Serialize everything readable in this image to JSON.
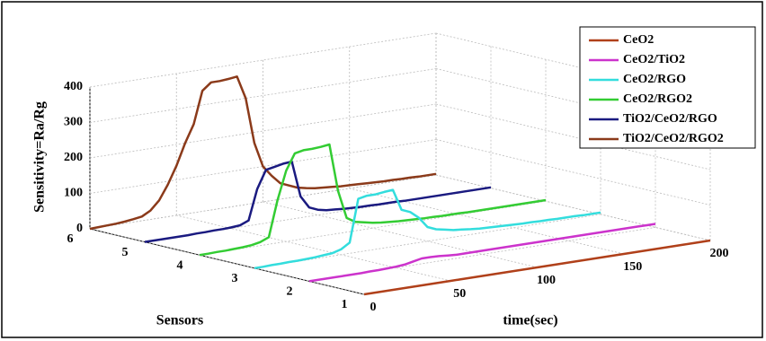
{
  "chart_data": {
    "type": "waterfall3d",
    "xlabel": "time(sec)",
    "ylabel": "Sensors",
    "zlabel": "Sensitivity=Ra/Rg",
    "xlim": [
      0,
      200
    ],
    "xticks": [
      0,
      50,
      100,
      150,
      200
    ],
    "ylim": [
      1,
      6
    ],
    "yticks": [
      1,
      2,
      3,
      4,
      5,
      6
    ],
    "zlim": [
      0,
      400
    ],
    "zticks": [
      0,
      100,
      200,
      300,
      400
    ],
    "grid": true,
    "legend": "upper right",
    "x": [
      0,
      5,
      10,
      15,
      20,
      25,
      30,
      35,
      40,
      45,
      50,
      55,
      60,
      65,
      70,
      75,
      80,
      85,
      90,
      95,
      100,
      105,
      110,
      115,
      120,
      125,
      130,
      135,
      140,
      145,
      150,
      155,
      160,
      165,
      170,
      175,
      180,
      185,
      190,
      195,
      200
    ],
    "series": [
      {
        "name": "CeO2",
        "color": "#b0401a",
        "sensor": 1,
        "values": [
          0,
          0,
          0,
          0,
          0,
          0,
          0,
          0,
          0,
          0,
          0,
          0,
          0,
          0,
          0,
          0,
          0,
          0,
          0,
          0,
          0,
          0,
          0,
          0,
          0,
          0,
          0,
          0,
          0,
          0,
          0,
          0,
          0,
          0,
          0,
          0,
          0,
          0,
          0,
          0,
          0
        ]
      },
      {
        "name": "CeO2/TiO2",
        "color": "#cc33cc",
        "sensor": 2,
        "values": [
          0,
          0,
          0,
          0,
          0,
          0,
          0,
          1,
          1,
          2,
          3,
          5,
          10,
          15,
          15,
          14,
          12,
          10,
          10,
          10,
          10,
          10,
          10,
          10,
          10,
          10,
          10,
          10,
          10,
          10,
          10,
          10,
          10,
          10,
          10,
          10,
          10,
          10,
          10,
          10,
          10
        ]
      },
      {
        "name": "CeO2/RGO",
        "color": "#33dddd",
        "sensor": 3,
        "values": [
          0,
          0,
          1,
          1,
          2,
          2,
          3,
          4,
          6,
          8,
          15,
          30,
          150,
          155,
          155,
          158,
          160,
          100,
          90,
          70,
          40,
          30,
          25,
          20,
          18,
          15,
          13,
          12,
          11,
          10,
          9,
          8,
          8,
          7,
          7,
          6,
          6,
          6,
          5,
          5,
          5
        ]
      },
      {
        "name": "CeO2/RGO2",
        "color": "#33cc33",
        "sensor": 4,
        "values": [
          0,
          0,
          1,
          1,
          2,
          3,
          5,
          10,
          20,
          120,
          200,
          245,
          250,
          250,
          252,
          255,
          120,
          40,
          25,
          20,
          15,
          12,
          10,
          8,
          7,
          6,
          5,
          5,
          4,
          4,
          4,
          3,
          3,
          3,
          3,
          3,
          3,
          3,
          3,
          3,
          3
        ]
      },
      {
        "name": "TiO2/CeO2/RGO",
        "color": "#1a1a80",
        "sensor": 5,
        "values": [
          0,
          0,
          0,
          0,
          0,
          0,
          1,
          1,
          2,
          2,
          3,
          5,
          15,
          100,
          150,
          155,
          160,
          162,
          60,
          25,
          15,
          10,
          8,
          6,
          5,
          4,
          4,
          3,
          3,
          3,
          2,
          2,
          2,
          2,
          2,
          2,
          2,
          2,
          2,
          2,
          2
        ]
      },
      {
        "name": "TiO2/CeO2/RGO2",
        "color": "#8b3a1a",
        "sensor": 6,
        "values": [
          0,
          1,
          2,
          3,
          5,
          8,
          12,
          25,
          50,
          90,
          140,
          200,
          250,
          340,
          360,
          360,
          362,
          365,
          300,
          170,
          100,
          70,
          45,
          35,
          25,
          20,
          16,
          14,
          12,
          10,
          9,
          8,
          7,
          6,
          5,
          5,
          4,
          4,
          3,
          3,
          3
        ]
      }
    ]
  }
}
